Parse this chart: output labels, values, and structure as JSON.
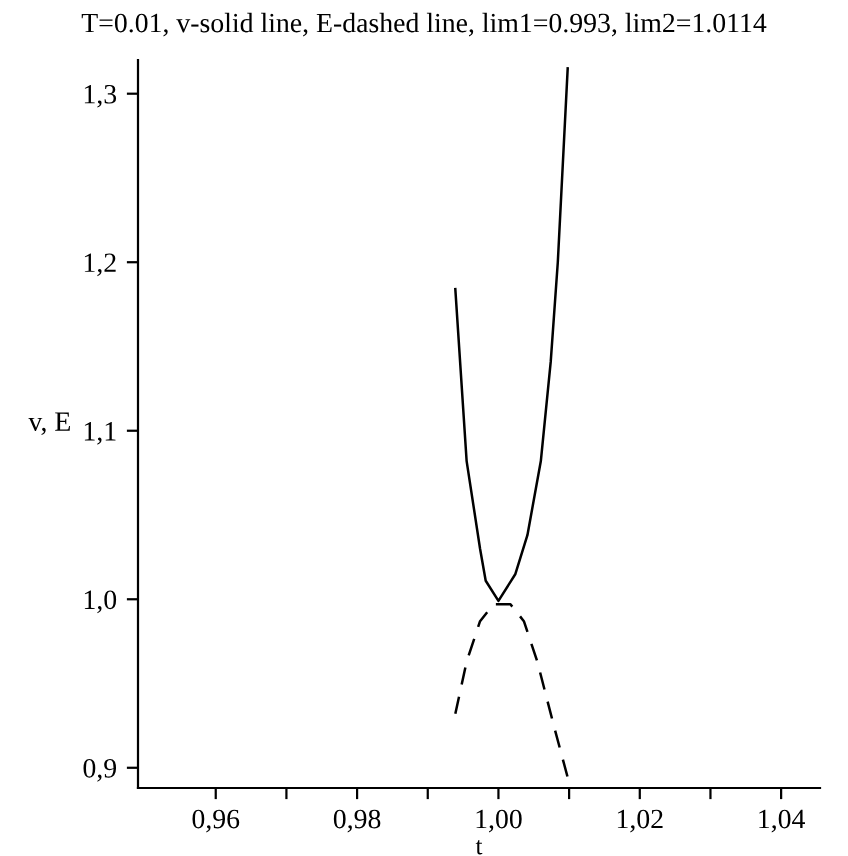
{
  "chart_data": {
    "type": "line",
    "title": "T=0.01, v-solid line, E-dashed line, lim1=0.993, lim2=1.0114",
    "xlabel": "t",
    "ylabel": "v, E",
    "series": [
      {
        "color": "#000000",
        "line_style": "solid",
        "x": [
          0.9939,
          0.9955,
          0.9974,
          0.9982,
          1.0,
          1.0024,
          1.0041,
          1.006,
          1.0074,
          1.0084,
          1.0098
        ],
        "values": [
          1.184,
          1.082,
          1.03,
          1.011,
          0.999,
          1.015,
          1.038,
          1.082,
          1.141,
          1.2,
          1.315
        ]
      },
      {
        "color": "#000000",
        "line_style": "dashed",
        "x": [
          0.9939,
          0.9955,
          0.9974,
          0.9993,
          1.0017,
          1.0036,
          1.0055,
          1.0079,
          1.0102
        ],
        "values": [
          0.932,
          0.963,
          0.987,
          0.997,
          0.997,
          0.987,
          0.963,
          0.924,
          0.888
        ]
      }
    ],
    "xlim": [
      0.949,
      1.0455
    ],
    "ylim": [
      0.888,
      1.32
    ],
    "xticks": [
      {
        "value": 0.96,
        "label": "0,96"
      },
      {
        "value": 0.97,
        "label": null
      },
      {
        "value": 0.98,
        "label": "0,98"
      },
      {
        "value": 0.99,
        "label": null
      },
      {
        "value": 1.0,
        "label": "1,00"
      },
      {
        "value": 1.01,
        "label": null
      },
      {
        "value": 1.02,
        "label": "1,02"
      },
      {
        "value": 1.03,
        "label": null
      },
      {
        "value": 1.04,
        "label": "1,04"
      }
    ],
    "yticks": [
      {
        "value": 0.9,
        "label": "0,9"
      },
      {
        "value": 1.0,
        "label": "1,0"
      },
      {
        "value": 1.1,
        "label": "1,1"
      },
      {
        "value": 1.2,
        "label": "1,2"
      },
      {
        "value": 1.3,
        "label": "1,3"
      }
    ],
    "grid": false,
    "legend": false
  }
}
